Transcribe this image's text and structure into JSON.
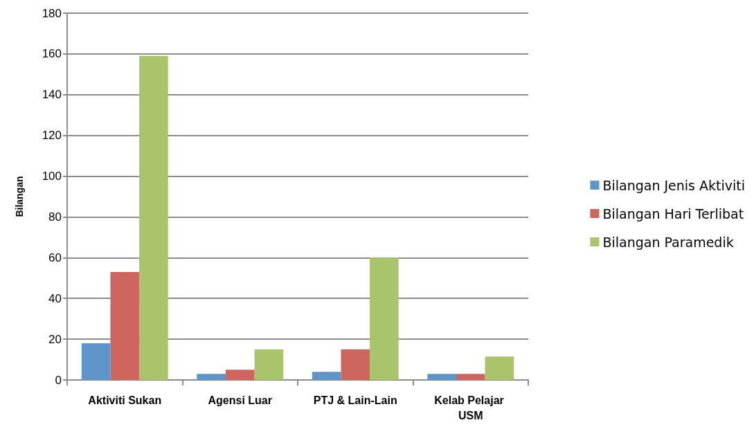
{
  "chart_data": {
    "type": "bar",
    "ylabel": "Bilangan",
    "categories": [
      "Aktiviti Sukan",
      "Agensi Luar",
      "PTJ & Lain-Lain",
      "Kelab Pelajar USM"
    ],
    "series": [
      {
        "name": "Bilangan Jenis Aktiviti",
        "color": "#6095c9",
        "values": [
          18,
          3,
          4,
          3
        ]
      },
      {
        "name": "Bilangan Hari Terlibat",
        "color": "#cc665e",
        "values": [
          53,
          5,
          15,
          3
        ]
      },
      {
        "name": "Bilangan Paramedik",
        "color": "#a9c46b",
        "values": [
          159,
          15,
          60,
          11.5
        ]
      }
    ],
    "ylim": [
      0,
      180
    ],
    "yticks": [
      0,
      20,
      40,
      60,
      80,
      100,
      120,
      140,
      160,
      180
    ],
    "grid": "y",
    "legend": "right"
  }
}
